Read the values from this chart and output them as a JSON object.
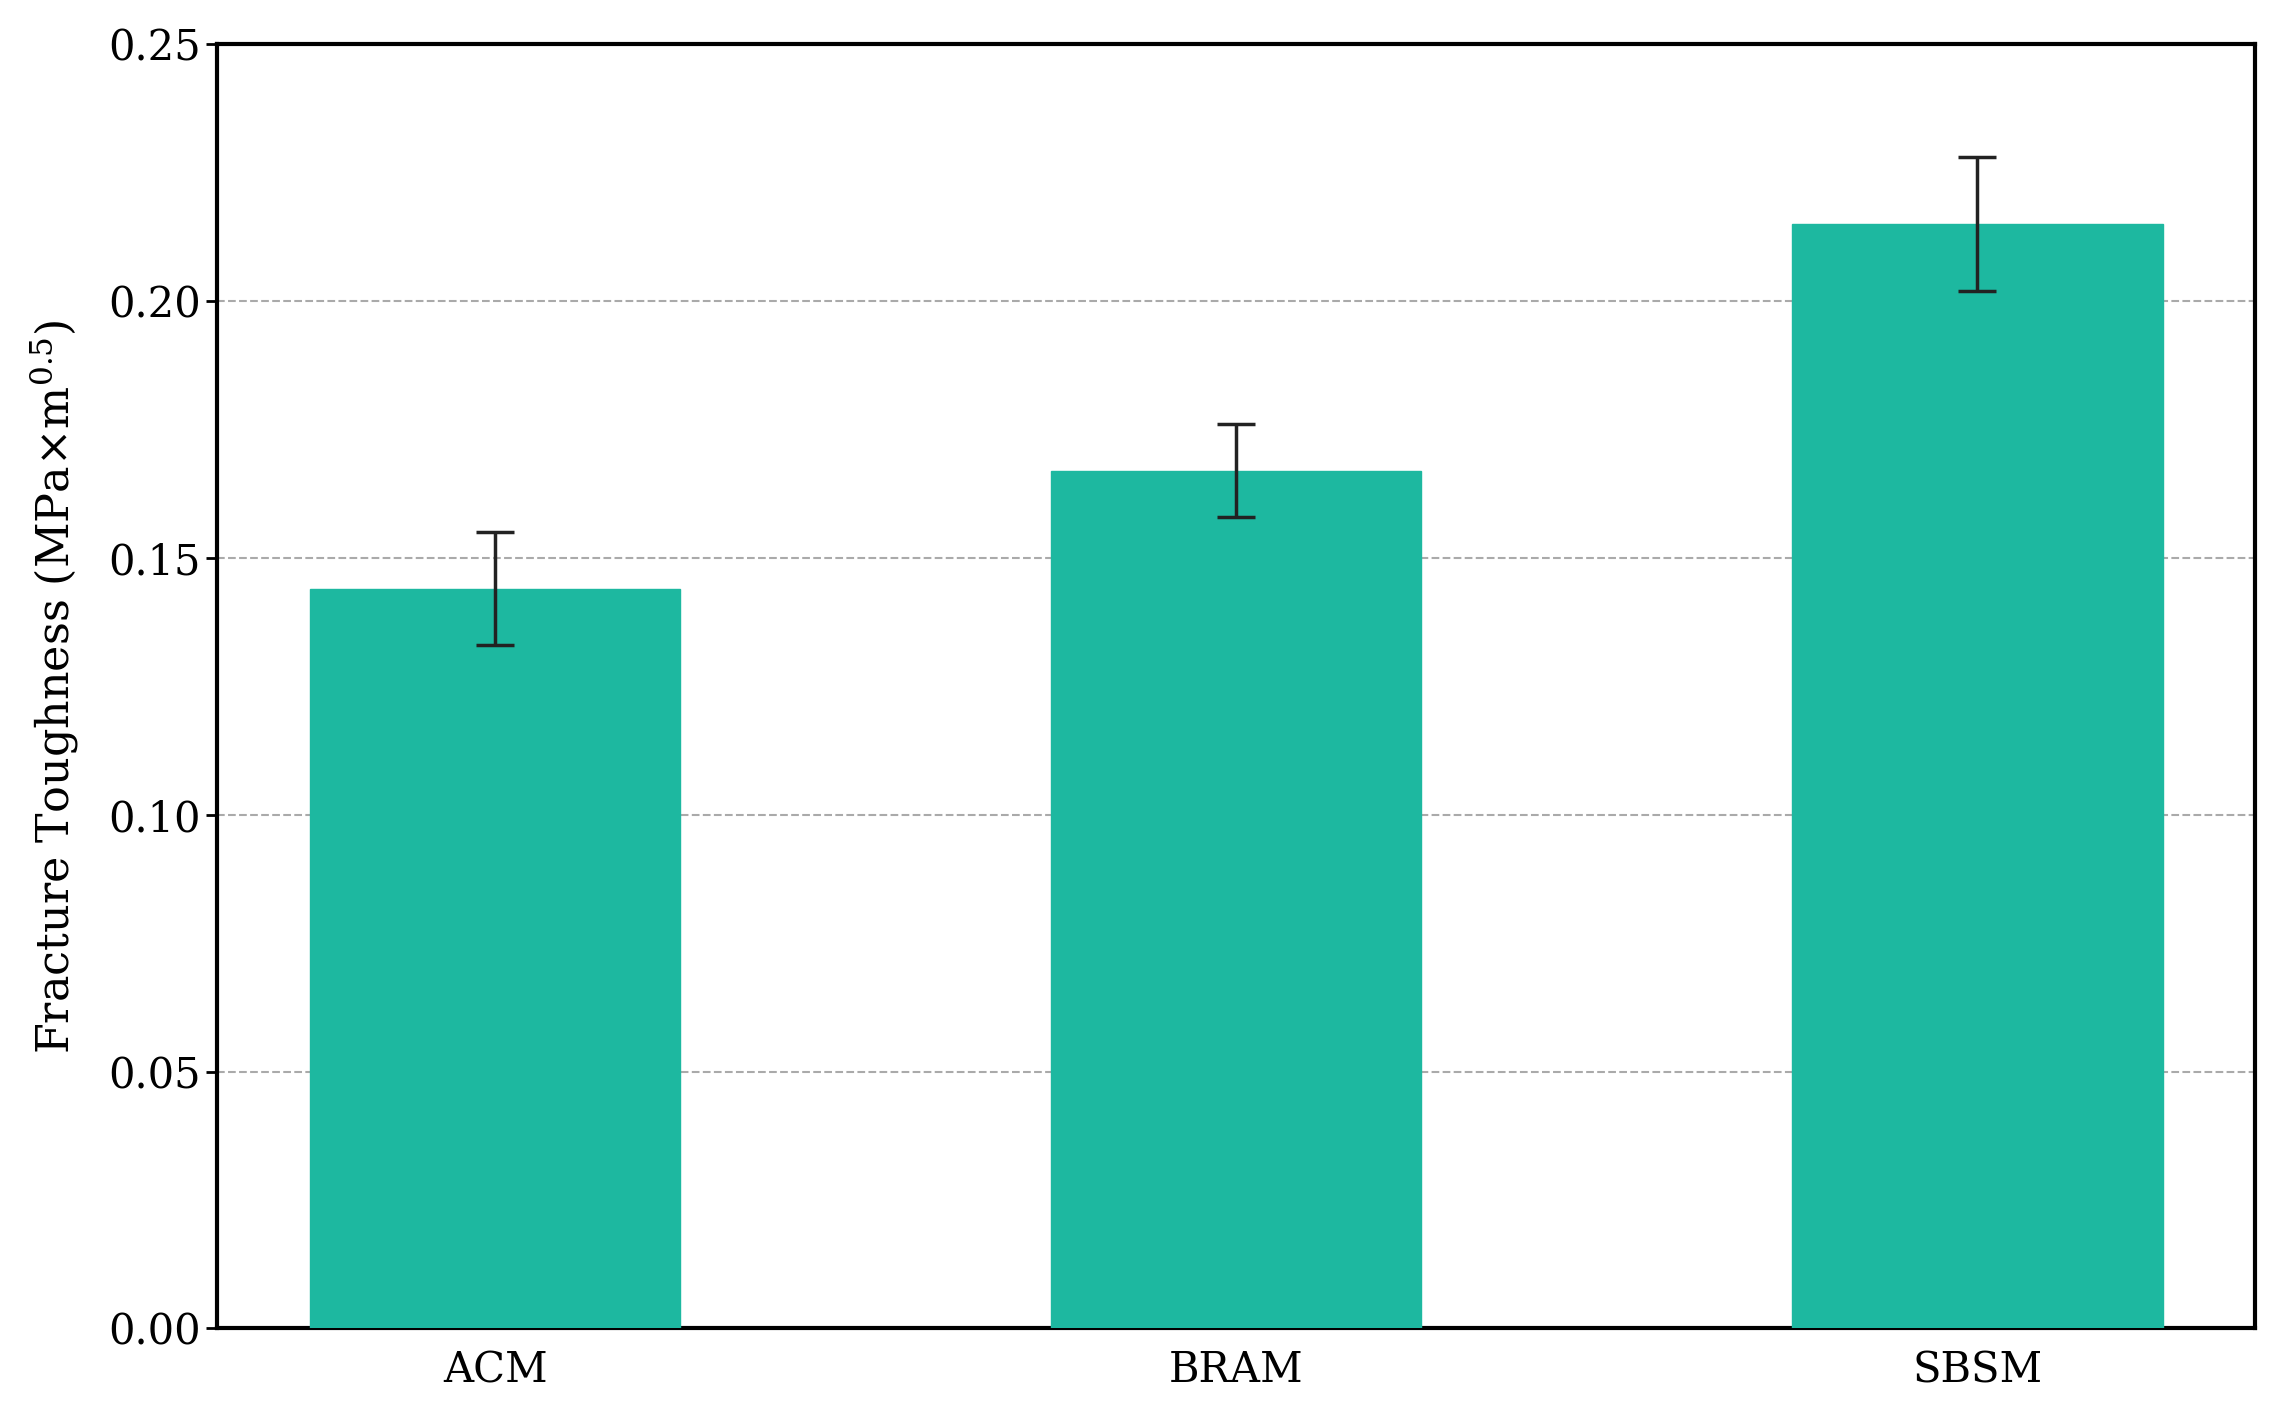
{
  "categories": [
    "ACM",
    "BRAM",
    "SBSM"
  ],
  "values": [
    0.144,
    0.167,
    0.215
  ],
  "errors": [
    0.011,
    0.009,
    0.013
  ],
  "bar_color": "#1DB8A0",
  "bar_edgecolor": "#1DB8A0",
  "error_color": "#222222",
  "ylabel": "Fracture Toughness (MPa×m$^{0.5}$)",
  "ylim": [
    0.0,
    0.25
  ],
  "yticks": [
    0.0,
    0.05,
    0.1,
    0.15,
    0.2,
    0.25
  ],
  "grid_color": "#aaaaaa",
  "background_color": "#ffffff",
  "bar_width": 0.5,
  "label_fontsize": 32,
  "tick_fontsize": 30,
  "spine_linewidth": 3.0
}
